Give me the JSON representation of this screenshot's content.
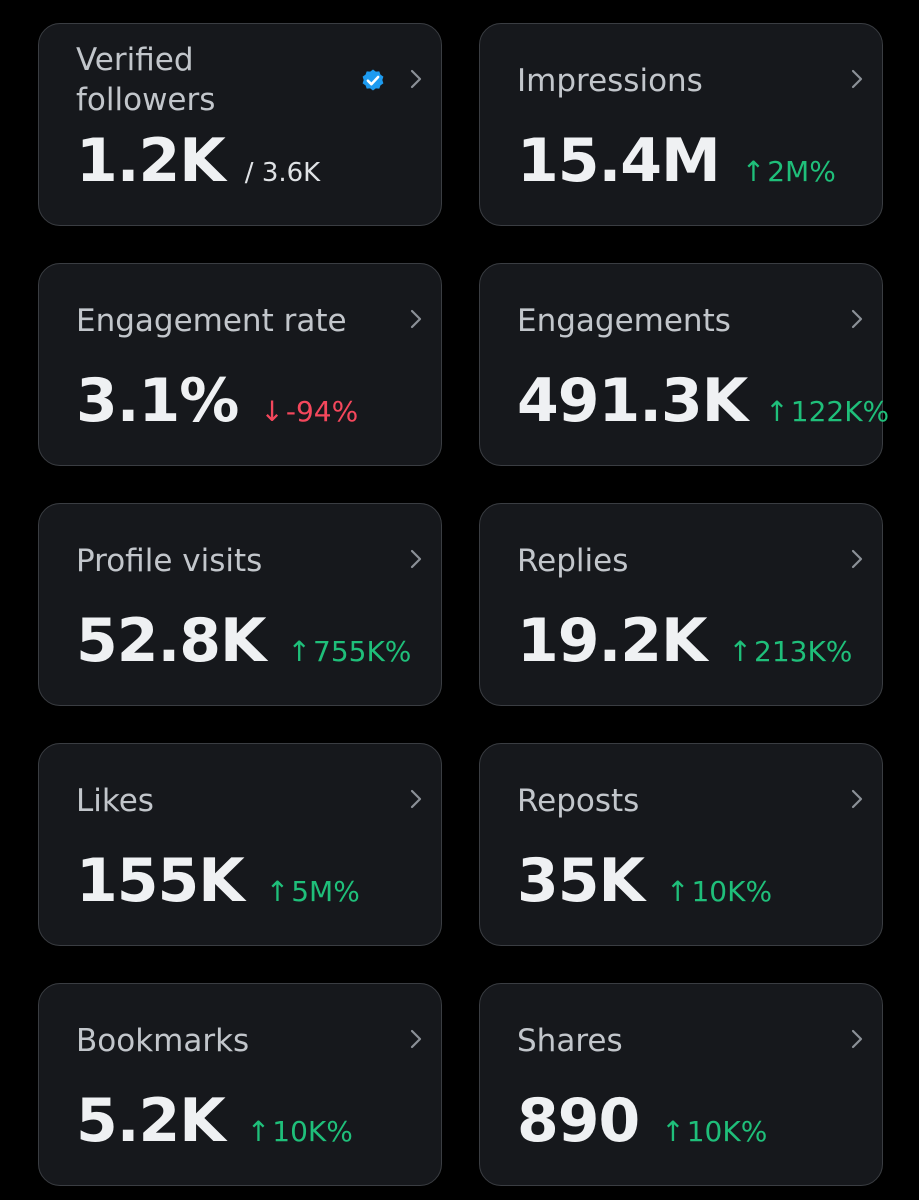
{
  "theme": {
    "background": "#000000",
    "card_background": "#16181c",
    "card_border": "#3a3d42",
    "up_color": "#1fbf7a",
    "down_color": "#f4475c",
    "verified_color": "#1d9bf0"
  },
  "cards": [
    {
      "title": "Verified followers",
      "value": "1.2K",
      "sub": "/ 3.6K",
      "icon": "verified-badge-icon"
    },
    {
      "title": "Impressions",
      "value": "15.4M",
      "delta": "2M%",
      "direction": "up"
    },
    {
      "title": "Engagement rate",
      "value": "3.1%",
      "delta": "-94%",
      "direction": "down"
    },
    {
      "title": "Engagements",
      "value": "491.3K",
      "delta": "122K%",
      "direction": "up"
    },
    {
      "title": "Profile visits",
      "value": "52.8K",
      "delta": "755K%",
      "direction": "up"
    },
    {
      "title": "Replies",
      "value": "19.2K",
      "delta": "213K%",
      "direction": "up"
    },
    {
      "title": "Likes",
      "value": "155K",
      "delta": "5M%",
      "direction": "up"
    },
    {
      "title": "Reposts",
      "value": "35K",
      "delta": "10K%",
      "direction": "up"
    },
    {
      "title": "Bookmarks",
      "value": "5.2K",
      "delta": "10K%",
      "direction": "up"
    },
    {
      "title": "Shares",
      "value": "890",
      "delta": "10K%",
      "direction": "up"
    }
  ]
}
